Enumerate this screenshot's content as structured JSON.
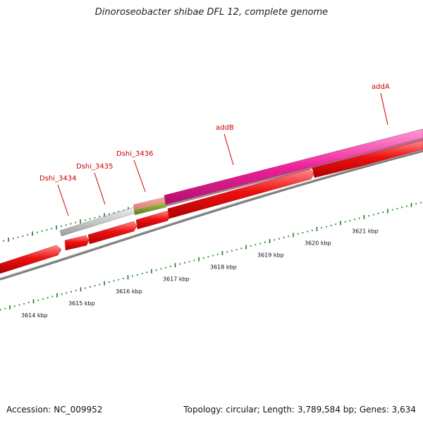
{
  "title": "Dinoroseobacter shibae DFL 12, complete genome",
  "footer": {
    "accession": "Accession: NC_009952",
    "summary": "Topology: circular; Length: 3,789,584 bp; Genes: 3,634"
  },
  "colors": {
    "cds": "#ee1111",
    "addA": "#ee2299",
    "rna": "#c8c8c8",
    "misc": "#7a9a2a",
    "backbone": "#777777",
    "ticks": "#1a7a1a",
    "labels": "#cc0000"
  },
  "gene_labels": [
    {
      "name": "Dshi_3434",
      "pos": 3614.7
    },
    {
      "name": "Dshi_3435",
      "pos": 3615.49
    },
    {
      "name": "Dshi_3436",
      "pos": 3616.4
    },
    {
      "name": "addB",
      "pos": 3618.4
    },
    {
      "name": "addA",
      "pos": 3621.63
    }
  ],
  "kbp_labels": [
    {
      "text": "3614 kbp",
      "pos": 3614
    },
    {
      "text": "3615 kbp",
      "pos": 3615
    },
    {
      "text": "3616 kbp",
      "pos": 3616
    },
    {
      "text": "3617 kbp",
      "pos": 3617
    },
    {
      "text": "3618 kbp",
      "pos": 3618
    },
    {
      "text": "3619 kbp",
      "pos": 3619
    },
    {
      "text": "3620 kbp",
      "pos": 3620
    },
    {
      "text": "3621 kbp",
      "pos": 3621
    }
  ]
}
